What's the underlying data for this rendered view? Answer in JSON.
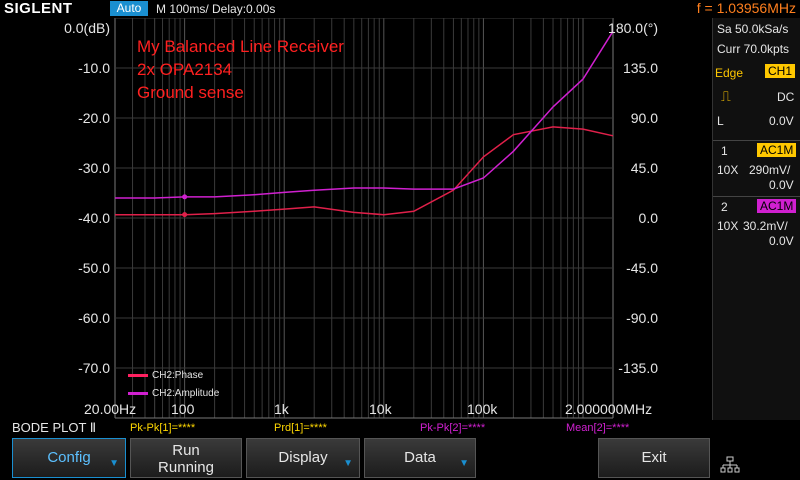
{
  "header": {
    "brand": "SIGLENT",
    "trigger_mode": "Auto",
    "timebase": "M 100ms/  Delay:0.00s",
    "frequency": "f = 1.03956MHz"
  },
  "plot": {
    "y_left_ticks": [
      "0.0(dB)",
      "-10.0",
      "-20.0",
      "-30.0",
      "-40.0",
      "-50.0",
      "-60.0",
      "-70.0"
    ],
    "y_right_ticks": [
      "180.0(°)",
      "135.0",
      "90.0",
      "45.0",
      "0.0",
      "-45.0",
      "-90.0",
      "-135.0"
    ],
    "x_ticks": [
      "20.00Hz",
      "100",
      "1k",
      "10k",
      "100k",
      "2.000000MHz"
    ],
    "annotation": [
      "My Balanced Line Receiver",
      "2x OPA2134",
      "Ground sense"
    ],
    "legend": [
      {
        "label": "CH2:Phase",
        "color": "#ff2060"
      },
      {
        "label": "CH2:Amplitude",
        "color": "#d020d0"
      }
    ],
    "colors": {
      "phase": "#e0204a",
      "amplitude": "#d020d0",
      "grid": "#3a3a3a"
    }
  },
  "chart_data": {
    "type": "line",
    "x_scale": "log",
    "x_range_hz": [
      20,
      2000000
    ],
    "y_left_range_db": [
      -80,
      0
    ],
    "y_right_range_deg": [
      -180,
      180
    ],
    "series": [
      {
        "name": "CH2:Phase",
        "axis": "right-deg",
        "x": [
          20,
          50,
          100,
          200,
          500,
          1000,
          2000,
          5000,
          10000,
          20000,
          50000,
          100000,
          200000,
          500000,
          1000000,
          2000000
        ],
        "y": [
          3,
          3,
          3,
          4,
          6,
          8,
          10,
          5,
          3,
          6,
          25,
          55,
          75,
          82,
          80,
          74
        ]
      },
      {
        "name": "CH2:Amplitude",
        "axis": "right-deg",
        "x": [
          20,
          50,
          100,
          200,
          500,
          1000,
          2000,
          5000,
          10000,
          20000,
          50000,
          100000,
          200000,
          500000,
          1000000,
          2000000
        ],
        "y": [
          18,
          18,
          19,
          19,
          21,
          23,
          25,
          27,
          27,
          26,
          26,
          36,
          60,
          100,
          125,
          168
        ]
      }
    ]
  },
  "sidebar": {
    "sa": "Sa 50.0kSa/s",
    "curr": "Curr 70.0kpts",
    "edge_label": "Edge",
    "edge_ch": "CH1",
    "edge_coupling": "DC",
    "level_label": "L",
    "level_value": "0.0V",
    "ch1": {
      "num": "1",
      "coupling": "AC1M",
      "probe": "10X",
      "scale": "290mV/",
      "offset": "0.0V"
    },
    "ch2": {
      "num": "2",
      "coupling": "AC1M",
      "probe": "10X",
      "scale": "30.2mV/",
      "offset": "0.0V"
    }
  },
  "status": {
    "mode": "BODE PLOT Ⅱ",
    "pk1": "Pk-Pk[1]=****",
    "prd1": "Prd[1]=****",
    "pk2": "Pk-Pk[2]=****",
    "mean2": "Mean[2]=****"
  },
  "softkeys": {
    "config": "Config",
    "run": [
      "Run",
      "Running"
    ],
    "display": "Display",
    "data": "Data",
    "exit": "Exit"
  }
}
